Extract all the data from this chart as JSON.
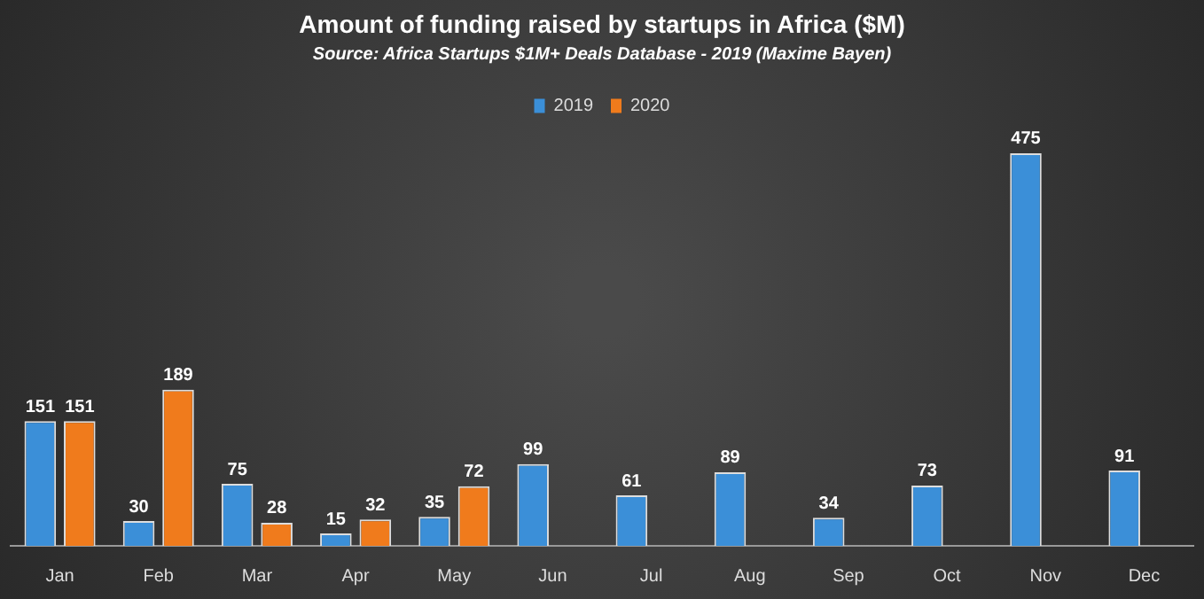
{
  "chart_data": {
    "type": "bar",
    "title": "Amount of funding raised by startups in Africa ($M)",
    "subtitle": "Source: Africa Startups $1M+ Deals Database - 2019 (Maxime Bayen)",
    "categories": [
      "Jan",
      "Feb",
      "Mar",
      "Apr",
      "May",
      "Jun",
      "Jul",
      "Aug",
      "Sep",
      "Oct",
      "Nov",
      "Dec"
    ],
    "series": [
      {
        "name": "2019",
        "color": "#3b8fd8",
        "values": [
          151,
          30,
          75,
          15,
          35,
          99,
          61,
          89,
          34,
          73,
          475,
          91
        ]
      },
      {
        "name": "2020",
        "color": "#f07b1c",
        "values": [
          151,
          189,
          28,
          32,
          72,
          null,
          null,
          null,
          null,
          null,
          null,
          null
        ]
      }
    ],
    "data_labels": true,
    "legend": "top",
    "grid": false
  }
}
